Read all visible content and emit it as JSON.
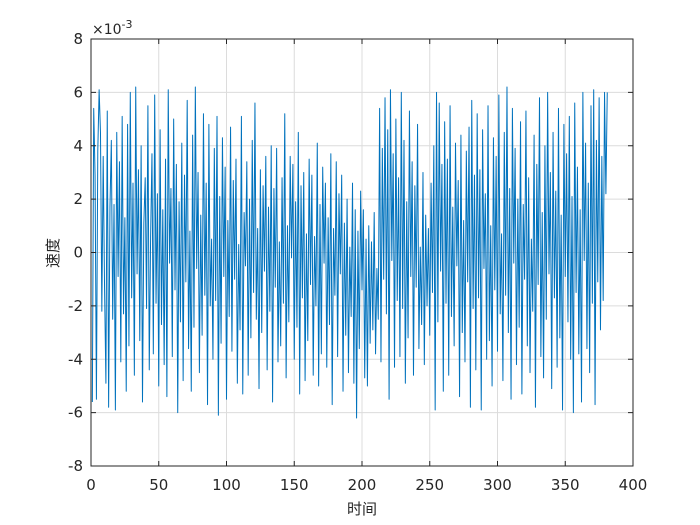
{
  "chart_data": {
    "type": "line",
    "xlabel": "时间",
    "ylabel": "速度",
    "y_exponent": {
      "base": "×10",
      "power": "-3"
    },
    "xlim": [
      0,
      400
    ],
    "ylim": [
      -8,
      8
    ],
    "xticks": [
      "0",
      "50",
      "100",
      "150",
      "200",
      "250",
      "300",
      "350",
      "400"
    ],
    "xtick_values": [
      0,
      50,
      100,
      150,
      200,
      250,
      300,
      350,
      400
    ],
    "yticks": [
      "-8",
      "-6",
      "-4",
      "-2",
      "0",
      "2",
      "4",
      "6",
      "8"
    ],
    "ytick_values": [
      -8,
      -6,
      -4,
      -2,
      0,
      2,
      4,
      6,
      8
    ],
    "grid": true,
    "series": [
      {
        "color": "#0072bd",
        "x_start": 1,
        "x_step": 1,
        "values": [
          -5.6,
          5.4,
          2.9,
          -5.5,
          3.8,
          6.1,
          4.5,
          -2.2,
          3.6,
          -1.3,
          -4.9,
          5.3,
          -5.8,
          1.7,
          4.2,
          -2.5,
          1.8,
          -5.9,
          4.5,
          -0.9,
          3.4,
          -4.1,
          5.1,
          -2.3,
          1.3,
          -5.2,
          4.8,
          -3.5,
          6.0,
          -1.7,
          2.6,
          -4.6,
          6.2,
          -0.8,
          3.1,
          -3.3,
          4.0,
          -5.6,
          1.1,
          2.8,
          -2.1,
          5.5,
          -4.4,
          0.6,
          3.7,
          -3.8,
          5.9,
          -1.9,
          2.2,
          -5.0,
          4.6,
          -2.7,
          1.6,
          -4.2,
          3.5,
          -5.4,
          6.1,
          -0.4,
          2.4,
          -3.9,
          5.0,
          -1.4,
          3.3,
          -6.0,
          1.9,
          -2.6,
          4.1,
          -4.8,
          2.9,
          -1.1,
          5.7,
          -3.6,
          0.8,
          -5.2,
          4.4,
          -2.8,
          6.2,
          -0.6,
          3.0,
          -4.5,
          1.4,
          -3.1,
          5.2,
          -1.6,
          2.6,
          -5.7,
          4.8,
          -2.0,
          0.5,
          -4.0,
          3.9,
          -1.8,
          5.1,
          -6.1,
          2.1,
          -3.4,
          4.3,
          -0.9,
          3.2,
          -5.5,
          1.2,
          -2.4,
          4.7,
          -3.7,
          2.7,
          -1.0,
          3.5,
          -4.9,
          0.3,
          -2.9,
          5.1,
          -5.3,
          1.5,
          -0.5,
          3.4,
          -4.6,
          2.0,
          -3.2,
          4.2,
          -1.5,
          5.6,
          -2.5,
          0.9,
          -5.1,
          3.1,
          -3.0,
          2.5,
          -0.7,
          3.6,
          -4.4,
          1.7,
          -2.2,
          4.0,
          -5.6,
          2.4,
          -1.3,
          3.9,
          -4.1,
          0.4,
          -3.5,
          2.8,
          -1.9,
          5.2,
          -4.7,
          1.0,
          -2.6,
          3.6,
          -0.2,
          3.3,
          -4.0,
          1.9,
          -2.8,
          4.5,
          -5.3,
          2.5,
          -1.7,
          3.0,
          -4.8,
          0.7,
          -3.3,
          3.5,
          -1.2,
          2.9,
          -4.6,
          0.6,
          -2.0,
          4.1,
          -5.0,
          1.8,
          -3.8,
          3.2,
          -0.4,
          2.6,
          -4.3,
          1.3,
          -2.7,
          3.7,
          -5.7,
          0.9,
          -1.6,
          3.4,
          -3.9,
          2.2,
          -0.8,
          2.9,
          -5.2,
          1.1,
          -3.1,
          2.0,
          -4.5,
          0.2,
          -2.4,
          2.6,
          -4.9,
          1.6,
          -6.2,
          0.8,
          -3.6,
          2.3,
          -1.4,
          1.6,
          -4.7,
          0.5,
          -5.0,
          1.0,
          -3.4,
          0.4,
          -2.9,
          1.5,
          -3.8,
          -0.6,
          -2.5,
          5.4,
          -4.1,
          3.9,
          -1.0,
          5.8,
          -2.3,
          4.6,
          -5.5,
          6.1,
          -0.3,
          3.7,
          -4.3,
          5.0,
          -1.8,
          2.8,
          -3.9,
          6.0,
          -2.1,
          4.2,
          -4.9,
          1.9,
          -3.2,
          5.3,
          -0.9,
          3.4,
          -4.6,
          2.5,
          -1.3,
          4.8,
          -3.6,
          0.2,
          -2.7,
          3.0,
          -4.2,
          1.4,
          -2.0,
          0.9,
          -3.1,
          2.6,
          -1.5,
          4.0,
          -5.9,
          6.0,
          -2.6,
          5.6,
          -0.7,
          3.3,
          -5.2,
          4.9,
          -1.9,
          3.5,
          -4.6,
          5.5,
          -2.4,
          1.7,
          -3.5,
          4.1,
          -0.5,
          2.7,
          -5.4,
          4.4,
          -3.0,
          1.2,
          -4.1,
          3.8,
          -1.1,
          4.7,
          -5.8,
          5.7,
          -2.1,
          2.9,
          -4.4,
          5.2,
          -1.7,
          3.1,
          -5.9,
          4.6,
          -0.6,
          2.2,
          -4.0,
          5.5,
          -3.3,
          1.0,
          -5.0,
          4.3,
          -1.4,
          3.6,
          -3.7,
          5.9,
          -2.3,
          0.7,
          -4.8,
          4.5,
          -1.6,
          6.2,
          -3.0,
          2.4,
          -5.5,
          5.4,
          -0.4,
          3.9,
          -4.2,
          2.0,
          -2.8,
          4.9,
          -5.3,
          1.8,
          -1.0,
          5.3,
          -3.5,
          2.8,
          -4.5,
          0.5,
          -2.2,
          4.4,
          -5.8,
          3.3,
          -1.2,
          5.8,
          -3.9,
          1.5,
          -4.7,
          4.0,
          -2.5,
          6.0,
          -0.8,
          3.0,
          -5.1,
          4.5,
          -1.7,
          2.3,
          -4.3,
          5.4,
          -3.2,
          1.4,
          -5.9,
          4.8,
          -0.9,
          3.7,
          -2.6,
          5.1,
          -4.0,
          2.1,
          -6.0,
          5.6,
          -1.5,
          3.2,
          -3.8,
          1.6,
          -5.6,
          6.0,
          -0.3,
          4.1,
          -3.6,
          2.6,
          -4.5,
          5.5,
          -1.9,
          6.1,
          -5.7,
          4.2,
          -1.1,
          5.8,
          -2.9,
          3.6,
          -1.8,
          6.0,
          2.2,
          6.0
        ]
      }
    ]
  }
}
